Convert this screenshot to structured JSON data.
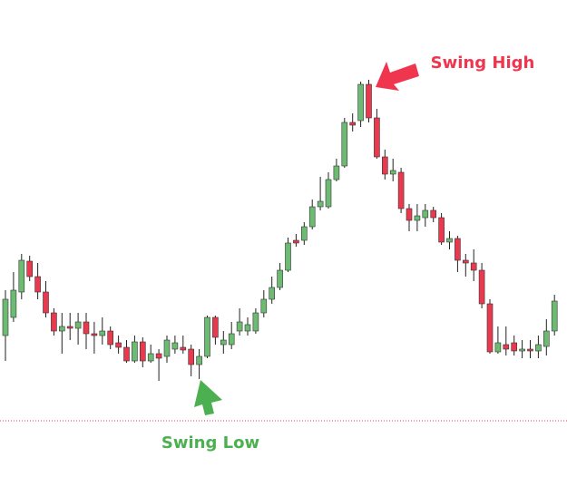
{
  "chart_data": {
    "type": "candlestick",
    "annotations": [
      "Swing High",
      "Swing Low"
    ],
    "up_color": "#6dbb72",
    "down_color": "#e8394f",
    "ylim": [
      0,
      500
    ],
    "open": [
      130,
      150,
      178,
      212,
      195,
      178,
      155,
      135,
      140,
      138,
      145,
      132,
      130,
      135,
      122,
      117,
      102,
      123,
      102,
      110,
      107,
      115,
      117,
      115,
      98,
      107,
      150,
      120,
      120,
      135,
      135,
      135,
      155,
      170,
      183,
      202,
      235,
      235,
      250,
      272,
      272,
      302,
      317,
      365,
      367,
      407,
      370,
      327,
      308,
      310,
      270,
      257,
      260,
      268,
      260,
      233,
      237,
      213,
      210,
      202,
      165,
      112,
      120,
      122,
      113,
      115,
      113,
      118,
      135
    ],
    "high": [
      180,
      200,
      220,
      218,
      210,
      190,
      160,
      155,
      155,
      155,
      155,
      145,
      150,
      140,
      130,
      125,
      130,
      128,
      120,
      115,
      130,
      130,
      130,
      120,
      115,
      152,
      152,
      135,
      145,
      160,
      150,
      160,
      180,
      195,
      210,
      238,
      242,
      255,
      280,
      305,
      310,
      325,
      370,
      375,
      410,
      412,
      380,
      335,
      325,
      315,
      275,
      275,
      275,
      272,
      265,
      245,
      240,
      220,
      225,
      210,
      170,
      140,
      140,
      130,
      125,
      125,
      130,
      148,
      175
    ],
    "low": [
      102,
      145,
      170,
      190,
      170,
      150,
      130,
      110,
      125,
      120,
      115,
      110,
      120,
      115,
      110,
      100,
      100,
      95,
      100,
      80,
      100,
      110,
      110,
      85,
      82,
      105,
      120,
      110,
      115,
      130,
      130,
      132,
      150,
      165,
      180,
      200,
      228,
      230,
      247,
      268,
      270,
      300,
      315,
      355,
      360,
      365,
      325,
      302,
      300,
      265,
      245,
      245,
      250,
      255,
      230,
      225,
      200,
      195,
      190,
      160,
      110,
      110,
      108,
      108,
      105,
      105,
      105,
      108,
      130
    ],
    "close": [
      170,
      180,
      213,
      195,
      178,
      155,
      135,
      140,
      138,
      145,
      132,
      130,
      135,
      120,
      117,
      102,
      123,
      102,
      110,
      105,
      125,
      122,
      114,
      98,
      107,
      150,
      128,
      125,
      132,
      145,
      142,
      155,
      170,
      183,
      202,
      232,
      232,
      250,
      272,
      278,
      302,
      317,
      365,
      362,
      407,
      370,
      327,
      308,
      312,
      270,
      257,
      262,
      268,
      260,
      233,
      237,
      213,
      210,
      202,
      165,
      112,
      122,
      115,
      113,
      115,
      113,
      120,
      135,
      168
    ]
  }
}
